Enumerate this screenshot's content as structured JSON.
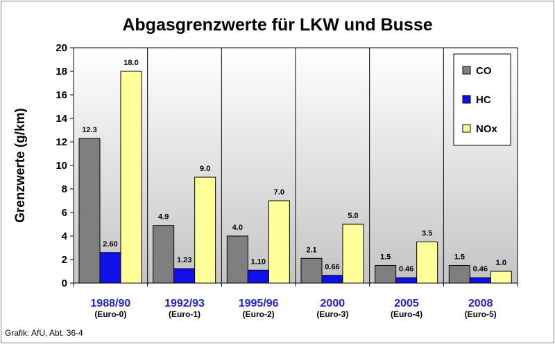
{
  "title": "Abgasgrenzwerte für LKW und Busse",
  "source": "Grafik: AfU, Abt. 36-4",
  "colors": {
    "CO": "#7f7f7f",
    "HC": "#1010e8",
    "NOx": "#ffff99"
  },
  "chart_data": {
    "type": "bar",
    "title": "Abgasgrenzwerte für LKW und Busse",
    "xlabel": "",
    "ylabel": "Grenzwerte (g/km)",
    "ylim": [
      0,
      20
    ],
    "yticks": [
      0,
      2,
      4,
      6,
      8,
      10,
      12,
      14,
      16,
      18,
      20
    ],
    "grid": false,
    "legend_position": "top-right",
    "categories": [
      "1988/90",
      "1992/93",
      "1995/96",
      "2000",
      "2005",
      "2008"
    ],
    "category_sublabels": [
      "(Euro-0)",
      "(Euro-1)",
      "(Euro-2)",
      "(Euro-3)",
      "(Euro-4)",
      "(Euro-5)"
    ],
    "series": [
      {
        "name": "CO",
        "values": [
          12.3,
          4.9,
          4.0,
          2.1,
          1.5,
          1.5
        ],
        "labels": [
          "12.3",
          "4.9",
          "4.0",
          "2.1",
          "1.5",
          "1.5"
        ]
      },
      {
        "name": "HC",
        "values": [
          2.6,
          1.23,
          1.1,
          0.66,
          0.46,
          0.46
        ],
        "labels": [
          "2.60",
          "1.23",
          "1.10",
          "0.66",
          "0.46",
          "0.46"
        ]
      },
      {
        "name": "NOx",
        "values": [
          18.0,
          9.0,
          7.0,
          5.0,
          3.5,
          1.0
        ],
        "labels": [
          "18.0",
          "9.0",
          "7.0",
          "5.0",
          "3.5",
          "1.0"
        ]
      }
    ]
  }
}
